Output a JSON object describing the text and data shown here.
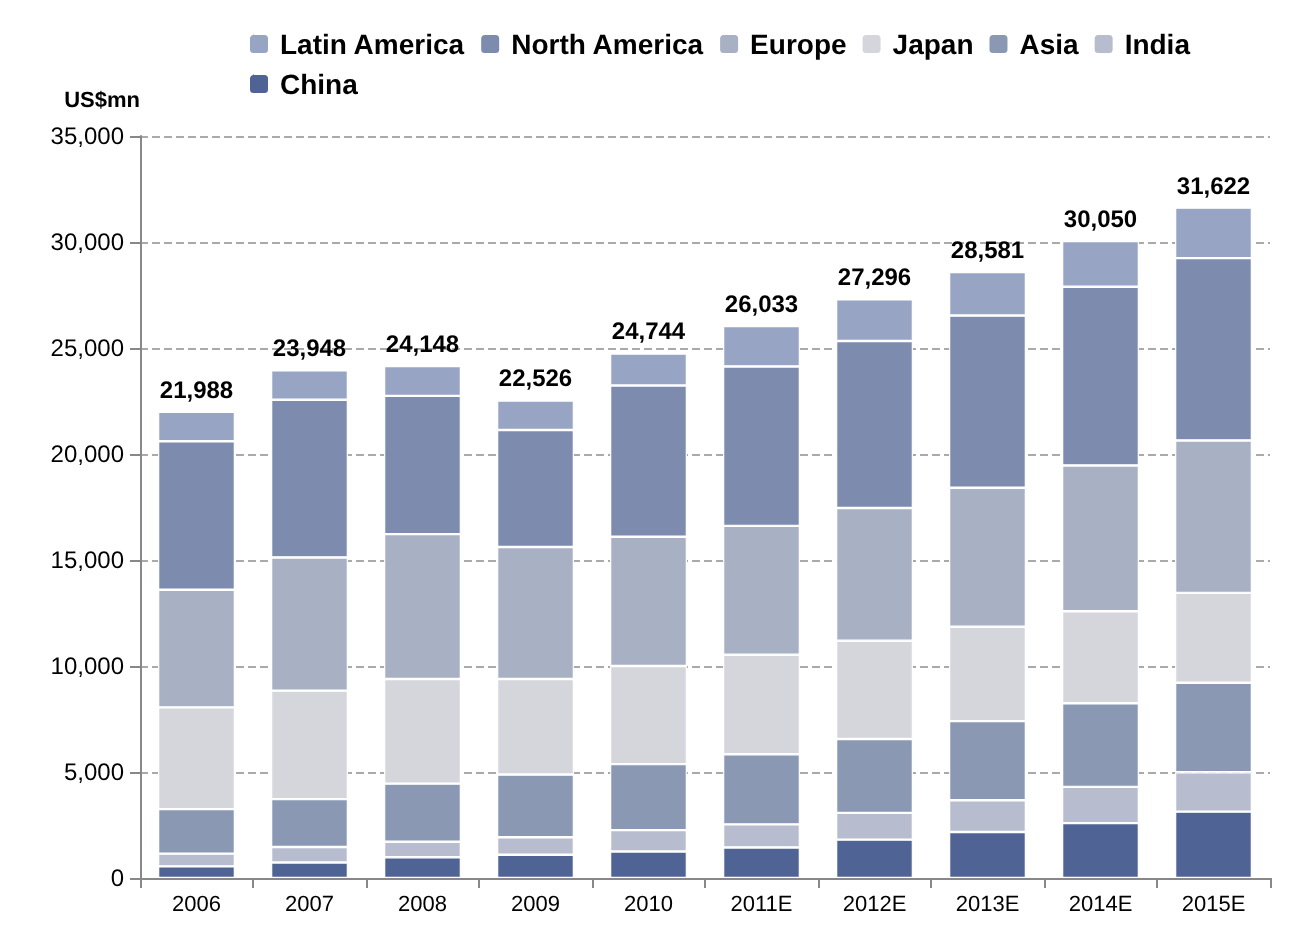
{
  "chart_data": {
    "type": "bar",
    "stacked": true,
    "ylabel": "US$mn",
    "legend": "top",
    "grid": "y",
    "categories": [
      "2006",
      "2007",
      "2008",
      "2009",
      "2010",
      "2011E",
      "2012E",
      "2013E",
      "2014E",
      "2015E"
    ],
    "series": [
      {
        "name": "China",
        "color": "#4f6494",
        "values": [
          550,
          730,
          980,
          1100,
          1250,
          1440,
          1810,
          2170,
          2590,
          3130
        ]
      },
      {
        "name": "India",
        "color": "#b8bccf",
        "values": [
          600,
          730,
          730,
          820,
          1010,
          1090,
          1260,
          1500,
          1710,
          1860
        ]
      },
      {
        "name": "Asia",
        "color": "#8a98b4",
        "values": [
          2100,
          2260,
          2740,
          2960,
          3110,
          3310,
          3490,
          3730,
          3940,
          4220
        ]
      },
      {
        "name": "Japan",
        "color": "#d4d6dc",
        "values": [
          4800,
          5120,
          4940,
          4510,
          4630,
          4690,
          4630,
          4450,
          4340,
          4240
        ]
      },
      {
        "name": "Europe",
        "color": "#a8b0c4",
        "values": [
          5550,
          6280,
          6830,
          6220,
          6100,
          6080,
          6260,
          6560,
          6880,
          7190
        ]
      },
      {
        "name": "North America",
        "color": "#7d8cae",
        "values": [
          7000,
          7440,
          6520,
          5520,
          7130,
          7520,
          7880,
          8120,
          8430,
          8600
        ]
      },
      {
        "name": "Latin America",
        "color": "#98a4c4",
        "values": [
          1388,
          1388,
          1408,
          1396,
          1514,
          1903,
          1966,
          2051,
          2160,
          2382
        ]
      }
    ],
    "totals": [
      "21,988",
      "23,948",
      "24,148",
      "22,526",
      "24,744",
      "26,033",
      "27,296",
      "28,581",
      "30,050",
      "31,622"
    ],
    "ylim": [
      0,
      35000
    ],
    "yticks": [
      {
        "value": 0,
        "label": "0"
      },
      {
        "value": 5000,
        "label": "5,000"
      },
      {
        "value": 10000,
        "label": "10,000"
      },
      {
        "value": 15000,
        "label": "15,000"
      },
      {
        "value": 20000,
        "label": "20,000"
      },
      {
        "value": 25000,
        "label": "25,000"
      },
      {
        "value": 30000,
        "label": "30,000"
      },
      {
        "value": 35000,
        "label": "35,000"
      }
    ]
  }
}
